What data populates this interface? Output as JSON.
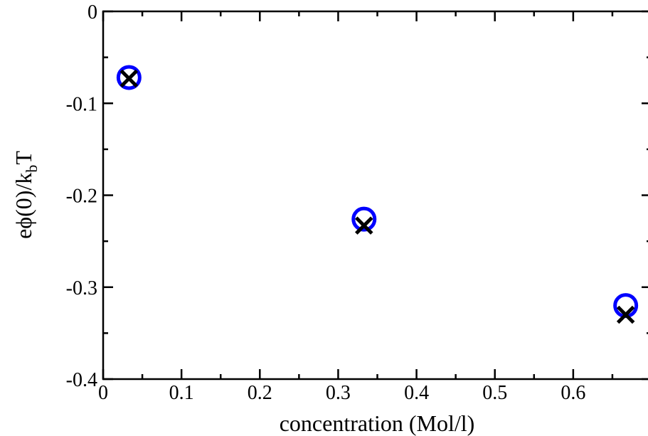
{
  "chart_data": {
    "type": "scatter",
    "title": "",
    "xlabel": "concentration (Mol/l)",
    "ylabel": {
      "prefix": "eϕ(0)/k",
      "subscript": "b",
      "suffix": "T"
    },
    "xlim": [
      0,
      0.7
    ],
    "ylim": [
      -0.4,
      0
    ],
    "x_ticks": [
      0,
      0.1,
      0.2,
      0.3,
      0.4,
      0.5,
      0.6
    ],
    "x_tick_labels": [
      "0",
      "0.1",
      "0.2",
      "0.3",
      "0.4",
      "0.5",
      "0.6"
    ],
    "y_ticks": [
      0,
      -0.1,
      -0.2,
      -0.3,
      -0.4
    ],
    "y_tick_labels": [
      "0",
      "-0.1",
      "-0.2",
      "-0.3",
      "-0.4"
    ],
    "grid": false,
    "series": [
      {
        "marker": "circle",
        "color": "#0000ff",
        "x": [
          0.033,
          0.333,
          0.667
        ],
        "y": [
          -0.072,
          -0.226,
          -0.32
        ]
      },
      {
        "marker": "x",
        "color": "#000000",
        "x": [
          0.033,
          0.333,
          0.667
        ],
        "y": [
          -0.073,
          -0.233,
          -0.33
        ]
      }
    ]
  }
}
